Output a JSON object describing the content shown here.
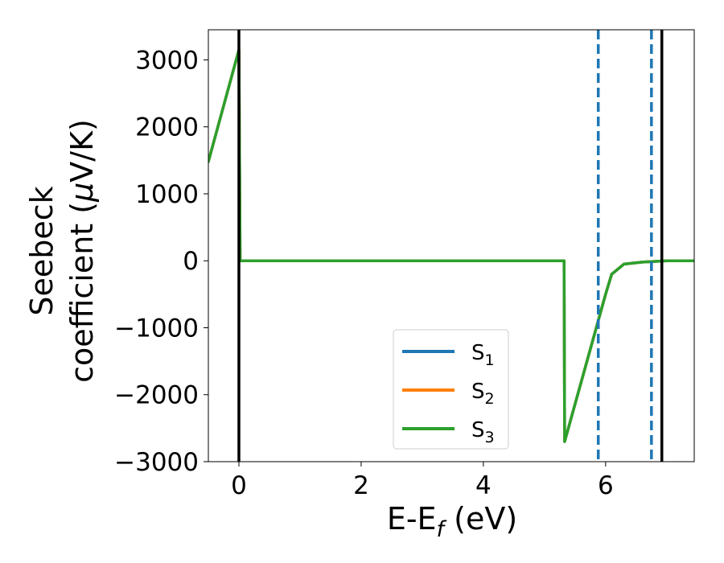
{
  "chart_data": {
    "type": "line",
    "xlabel": {
      "main": "E-E",
      "sub": "f",
      "rest": " (eV)"
    },
    "ylabel": {
      "line1": "Seebeck",
      "line2": "coefficient  (",
      "mu": "μ",
      "unit": "V/K)"
    },
    "xlim": [
      -0.5,
      7.45
    ],
    "ylim": [
      -3000,
      3450
    ],
    "xticks": [
      0,
      2,
      4,
      6
    ],
    "xtick_labels": [
      "0",
      "2",
      "4",
      "6"
    ],
    "yticks": [
      -3000,
      -2000,
      -1000,
      0,
      1000,
      2000,
      3000
    ],
    "ytick_labels": [
      "−3000",
      "−2000",
      "−1000",
      "0",
      "1000",
      "2000",
      "3000"
    ],
    "grid": false,
    "legend": {
      "placement": "lower-center"
    },
    "vertical_lines": [
      {
        "x": 0.0,
        "style": "solid",
        "color": "#000000"
      },
      {
        "x": 6.92,
        "style": "solid",
        "color": "#000000"
      },
      {
        "x": 5.88,
        "style": "dashed",
        "color": "#1f77b4"
      },
      {
        "x": 6.75,
        "style": "dashed",
        "color": "#1f77b4"
      }
    ],
    "series": [
      {
        "name": "S",
        "sub": "1",
        "color": "#1f77b4",
        "x": [
          -0.5,
          0.0,
          0.02,
          5.32,
          5.33,
          6.0,
          6.1,
          6.3,
          6.6,
          7.0,
          7.45
        ],
        "y": [
          1480,
          3150,
          0,
          0,
          -2700,
          -500,
          -200,
          -50,
          -20,
          0,
          0
        ]
      },
      {
        "name": "S",
        "sub": "2",
        "color": "#ff7f0e",
        "x": [
          -0.5,
          0.0,
          0.02,
          5.32,
          5.33,
          6.0,
          6.1,
          6.3,
          6.6,
          7.0,
          7.45
        ],
        "y": [
          1480,
          3150,
          0,
          0,
          -2700,
          -500,
          -200,
          -50,
          -20,
          0,
          0
        ]
      },
      {
        "name": "S",
        "sub": "3",
        "color": "#2ca02c",
        "x": [
          -0.5,
          0.0,
          0.02,
          5.32,
          5.33,
          6.0,
          6.1,
          6.3,
          6.6,
          7.0,
          7.45
        ],
        "y": [
          1480,
          3150,
          0,
          0,
          -2700,
          -500,
          -200,
          -50,
          -20,
          0,
          0
        ]
      }
    ]
  }
}
